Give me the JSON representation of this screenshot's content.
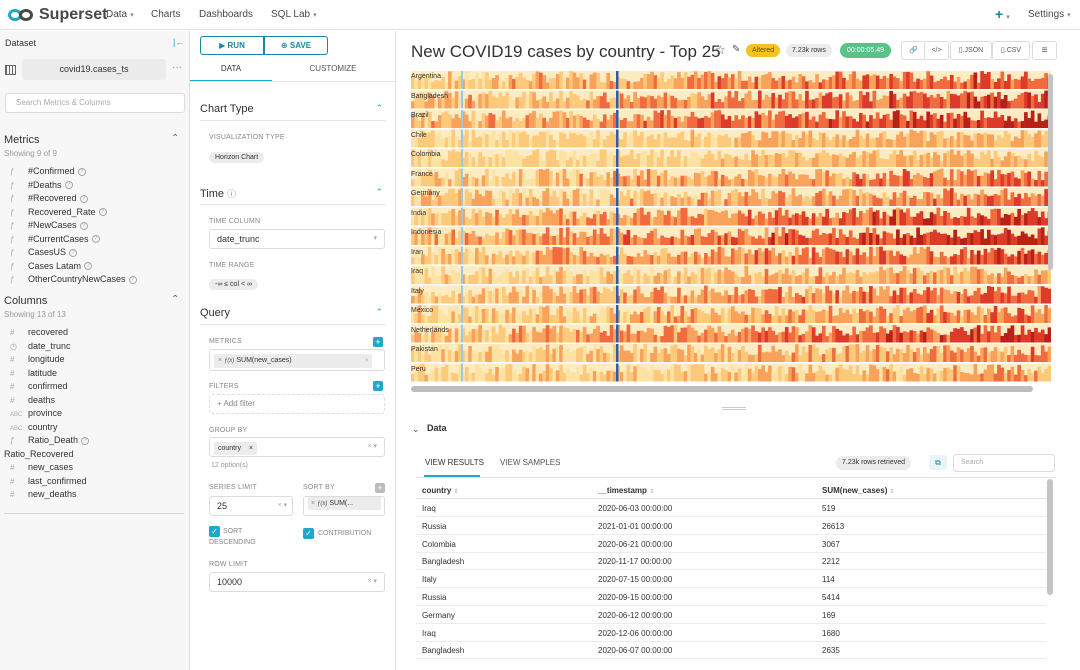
{
  "nav": {
    "brand": "Superset",
    "items": [
      "Data",
      "Charts",
      "Dashboards",
      "SQL Lab"
    ],
    "plus": "+",
    "settings": "Settings"
  },
  "dataset_panel": {
    "header": "Dataset",
    "collapse_icon": "|←",
    "dataset_name": "covid19.cases_ts",
    "more": "···",
    "search_placeholder": "Search Metrics & Columns",
    "metrics_title": "Metrics",
    "metrics_showing": "Showing 9 of 9",
    "metrics": [
      "#Confirmed",
      "#Deaths",
      "#Recovered",
      "Recovered_Rate",
      "#NewCases",
      "#CurrentCases",
      "CasesUS",
      "Cases Latam",
      "OtherCountryNewCases"
    ],
    "columns_title": "Columns",
    "columns_showing": "Showing 13 of 13",
    "columns": [
      {
        "icon": "#",
        "name": "recovered",
        "indent": true,
        "q": false
      },
      {
        "icon": "◷",
        "name": "date_trunc",
        "indent": true,
        "q": false
      },
      {
        "icon": "#",
        "name": "longitude",
        "indent": true,
        "q": false
      },
      {
        "icon": "#",
        "name": "latitude",
        "indent": true,
        "q": false
      },
      {
        "icon": "#",
        "name": "confirmed",
        "indent": true,
        "q": false
      },
      {
        "icon": "#",
        "name": "deaths",
        "indent": true,
        "q": false
      },
      {
        "icon": "ABC",
        "name": "province",
        "indent": true,
        "q": false
      },
      {
        "icon": "ABC",
        "name": "country",
        "indent": true,
        "q": false
      },
      {
        "icon": "ƒ",
        "name": "Ratio_Death",
        "indent": true,
        "q": true
      },
      {
        "icon": "",
        "name": "Ratio_Recovered",
        "indent": false,
        "q": false
      },
      {
        "icon": "#",
        "name": "new_cases",
        "indent": true,
        "q": false
      },
      {
        "icon": "#",
        "name": "last_confirmed",
        "indent": true,
        "q": false
      },
      {
        "icon": "#",
        "name": "new_deaths",
        "indent": true,
        "q": false
      }
    ]
  },
  "control_panel": {
    "run": "RUN",
    "save": "SAVE",
    "tabs": [
      "DATA",
      "CUSTOMIZE"
    ],
    "chart_type_title": "Chart Type",
    "viz_type_label": "VISUALIZATION TYPE",
    "viz_type": "Horizon Chart",
    "time_title": "Time",
    "time_column_label": "TIME COLUMN",
    "time_column": "date_trunc",
    "time_range_label": "TIME RANGE",
    "time_range": "-∞ ≤ col < ∞",
    "query_title": "Query",
    "metrics_label": "METRICS",
    "metric": "SUM(new_cases)",
    "filters_label": "FILTERS",
    "add_filter": "Add filter",
    "group_by_label": "GROUP BY",
    "group_by": "country",
    "group_by_hint": "12 option(s)",
    "series_limit_label": "SERIES LIMIT",
    "series_limit": "25",
    "sort_by_label": "SORT BY",
    "sort_by": "SUM(...",
    "sort_desc_label": "SORT",
    "sort_desc_label2": "DESCENDING",
    "contribution_label": "CONTRIBUTION",
    "row_limit_label": "ROW LIMIT",
    "row_limit": "10000"
  },
  "chart": {
    "title": "New COVID19 cases by country - Top 25",
    "altered": "Altered",
    "rows": "7.23k rows",
    "timer": "00:00:05.49",
    "json_btn": ".JSON",
    "csv_btn": ".CSV"
  },
  "chart_data": {
    "type": "heatmap",
    "categories": [
      "Argentina",
      "Bangladesh",
      "Brazil",
      "Chile",
      "Colombia",
      "France",
      "Germany",
      "India",
      "Indonesia",
      "Iran",
      "Iraq",
      "Italy",
      "Mexico",
      "Netherlands",
      "Pakistan",
      "Peru"
    ],
    "colors": [
      "#fde3a3",
      "#fcca7a",
      "#f9a25c",
      "#f06c3e",
      "#dc3b2a",
      "#b82117"
    ]
  },
  "data_panel": {
    "title": "Data",
    "tabs": [
      "VIEW RESULTS",
      "VIEW SAMPLES"
    ],
    "retrieved": "7.23k rows retrieved",
    "search_placeholder": "Search",
    "columns": [
      "country",
      "__timestamp",
      "SUM(new_cases)"
    ],
    "rows": [
      [
        "Iraq",
        "2020-06-03 00:00:00",
        "519"
      ],
      [
        "Russia",
        "2021-01-01 00:00:00",
        "26613"
      ],
      [
        "Colombia",
        "2020-06-21 00:00:00",
        "3067"
      ],
      [
        "Bangladesh",
        "2020-11-17 00:00:00",
        "2212"
      ],
      [
        "Italy",
        "2020-07-15 00:00:00",
        "114"
      ],
      [
        "Russia",
        "2020-09-15 00:00:00",
        "5414"
      ],
      [
        "Germany",
        "2020-06-12 00:00:00",
        "169"
      ],
      [
        "Iraq",
        "2020-12-06 00:00:00",
        "1680"
      ],
      [
        "Bangladesh",
        "2020-06-07 00:00:00",
        "2635"
      ]
    ]
  }
}
